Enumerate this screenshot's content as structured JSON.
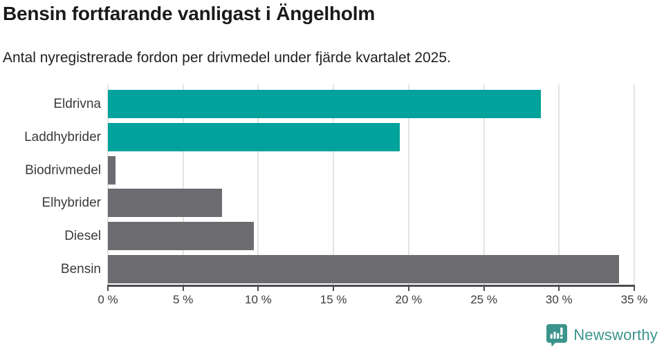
{
  "header": {
    "title": "Bensin fortfarande vanligast i Ängelholm",
    "subtitle": "Antal nyregistrerade fordon per drivmedel under fjärde kvartalet 2025."
  },
  "chart_data": {
    "type": "bar",
    "orientation": "horizontal",
    "title": "Bensin fortfarande vanligast i Ängelholm",
    "subtitle": "Antal nyregistrerade fordon per drivmedel under fjärde kvartalet 2025.",
    "categories": [
      "Eldrivna",
      "Laddhybrider",
      "Biodrivmedel",
      "Elhybrider",
      "Diesel",
      "Bensin"
    ],
    "values": [
      28.8,
      19.4,
      0.5,
      7.6,
      9.7,
      34.0
    ],
    "unit": "%",
    "bar_colors": [
      "#00A29B",
      "#00A29B",
      "#6B6B70",
      "#6B6B70",
      "#6B6B70",
      "#6B6B70"
    ],
    "xlabel": "",
    "ylabel": "",
    "xlim": [
      0,
      35
    ],
    "x_ticks": [
      0,
      5,
      10,
      15,
      20,
      25,
      30,
      35
    ],
    "x_tick_labels": [
      "0 %",
      "5 %",
      "10 %",
      "15 %",
      "20 %",
      "25 %",
      "30 %",
      "35 %"
    ],
    "grid": "vertical",
    "legend": "none"
  },
  "footer": {
    "brand": "Newsworthy"
  },
  "colors": {
    "teal": "#00A29B",
    "gray": "#6B6B70",
    "gridline": "#E4E4E4",
    "axis": "#4C4C50",
    "tick_text": "#3A3A3A",
    "title_text": "#1A1A1A",
    "brand_teal": "#3B948C"
  }
}
